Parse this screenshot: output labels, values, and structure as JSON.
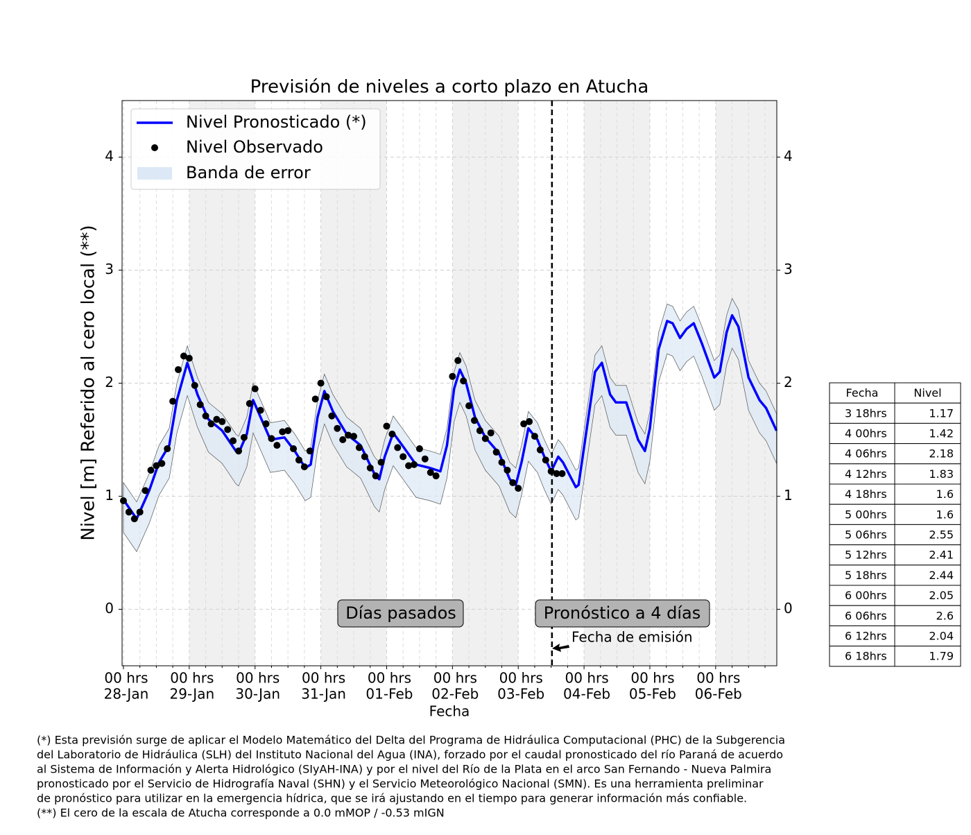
{
  "chart_data": {
    "type": "line",
    "title": "Previsión de niveles a corto plazo en Atucha",
    "xlabel": "Fecha",
    "ylabel": "Nivel [m] Referido al cero local (**)",
    "xlim": [
      -0.5,
      238.3
    ],
    "ylim": [
      -0.5,
      4.5
    ],
    "yticks": [
      0,
      1,
      2,
      3,
      4
    ],
    "xticks": [
      {
        "value": 0,
        "label": "00 hrs",
        "date": "28-Jan"
      },
      {
        "value": 24,
        "label": "00 hrs",
        "date": "29-Jan"
      },
      {
        "value": 48,
        "label": "00 hrs",
        "date": "30-Jan"
      },
      {
        "value": 72,
        "label": "00 hrs",
        "date": "31-Jan"
      },
      {
        "value": 96,
        "label": "00 hrs",
        "date": "01-Feb"
      },
      {
        "value": 120,
        "label": "00 hrs",
        "date": "02-Feb"
      },
      {
        "value": 144,
        "label": "00 hrs",
        "date": "03-Feb"
      },
      {
        "value": 168,
        "label": "00 hrs",
        "date": "04-Feb"
      },
      {
        "value": 192,
        "label": "00 hrs",
        "date": "05-Feb"
      },
      {
        "value": 216,
        "label": "00 hrs",
        "date": "06-Feb"
      }
    ],
    "xminorticks": [
      6,
      12,
      18,
      30,
      36,
      42,
      54,
      60,
      66,
      78,
      84,
      90,
      102,
      108,
      114,
      126,
      132,
      138,
      150,
      156,
      162,
      174,
      180,
      186,
      198,
      204,
      210,
      222,
      228,
      234
    ],
    "grid": true,
    "legend": "upper left",
    "emission": 156.3,
    "annotations": [
      {
        "text": "Días pasados"
      },
      {
        "text": "Pronóstico a 4 días"
      },
      {
        "text": "Fecha de emisión"
      }
    ],
    "series": [
      {
        "name": "Nivel Pronosticado (*)",
        "color": "#0000ff",
        "x": [
          0,
          4.8,
          9.4,
          13,
          16.7,
          19.5,
          23.3,
          27,
          31,
          36,
          41,
          42,
          45,
          47.3,
          50,
          53.6,
          58.7,
          62.5,
          66.3,
          68.3,
          70.8,
          73.3,
          76.4,
          81.4,
          86.5,
          91.5,
          93.3,
          95.3,
          98.4,
          101.7,
          106.7,
          111.8,
          115.6,
          118,
          120.6,
          122.7,
          125,
          128.2,
          132,
          137,
          140.9,
          143.1,
          145.2,
          147.7,
          151,
          153.5,
          156,
          158.6,
          160.3,
          165,
          166,
          168.7,
          172,
          174.5,
          177.5,
          179.6,
          183.4,
          187.7,
          190.2,
          192,
          195.2,
          198.3,
          200.3,
          203,
          205.4,
          208,
          211,
          215.5,
          217.5,
          220,
          222,
          224.3,
          228,
          232,
          234.4,
          238.2
        ],
        "values": [
          0.97,
          0.8,
          1.05,
          1.3,
          1.45,
          1.85,
          2.18,
          1.9,
          1.68,
          1.58,
          1.4,
          1.38,
          1.55,
          1.85,
          1.7,
          1.5,
          1.52,
          1.4,
          1.25,
          1.28,
          1.7,
          1.93,
          1.75,
          1.55,
          1.45,
          1.2,
          1.15,
          1.35,
          1.56,
          1.45,
          1.28,
          1.25,
          1.22,
          1.45,
          1.95,
          2.12,
          2.0,
          1.7,
          1.52,
          1.38,
          1.15,
          1.1,
          1.3,
          1.6,
          1.5,
          1.35,
          1.22,
          1.35,
          1.3,
          1.08,
          1.1,
          1.55,
          2.1,
          2.18,
          1.9,
          1.83,
          1.83,
          1.5,
          1.4,
          1.6,
          2.3,
          2.55,
          2.53,
          2.4,
          2.48,
          2.53,
          2.35,
          2.05,
          2.1,
          2.45,
          2.6,
          2.5,
          2.05,
          1.85,
          1.78,
          1.58
        ]
      },
      {
        "name": "Nivel Observado",
        "color": "#000000",
        "x": [
          0,
          2,
          4,
          6,
          8,
          10,
          12,
          14,
          16,
          18,
          20,
          22,
          24,
          26,
          28,
          30,
          32,
          34,
          36,
          38,
          40,
          42,
          44,
          46,
          48,
          50,
          52,
          54,
          56,
          58,
          60,
          62,
          64,
          66,
          68,
          70,
          72,
          74,
          76,
          78,
          80,
          82,
          84,
          86,
          88,
          90,
          92,
          94,
          96,
          98,
          100,
          102,
          104,
          106,
          108,
          110,
          112,
          114,
          120,
          122,
          124,
          126,
          128,
          130,
          132,
          134,
          136,
          138,
          140,
          142,
          144,
          146,
          148,
          150,
          152,
          154,
          156,
          158,
          160
        ],
        "values": [
          0.96,
          0.86,
          0.8,
          0.86,
          1.05,
          1.23,
          1.27,
          1.29,
          1.42,
          1.84,
          2.12,
          2.24,
          2.22,
          1.98,
          1.81,
          1.71,
          1.64,
          1.68,
          1.66,
          1.59,
          1.49,
          1.4,
          1.52,
          1.82,
          1.95,
          1.76,
          1.64,
          1.51,
          1.45,
          1.57,
          1.58,
          1.42,
          1.32,
          1.26,
          1.4,
          1.86,
          2.0,
          1.88,
          1.71,
          1.6,
          1.5,
          1.54,
          1.53,
          1.43,
          1.35,
          1.25,
          1.18,
          1.3,
          1.62,
          1.55,
          1.43,
          1.35,
          1.27,
          1.28,
          1.42,
          1.33,
          1.21,
          1.18,
          2.06,
          2.2,
          2.02,
          1.8,
          1.67,
          1.58,
          1.51,
          1.56,
          1.39,
          1.3,
          1.23,
          1.12,
          1.07,
          1.64,
          1.66,
          1.53,
          1.41,
          1.32,
          1.22,
          1.2,
          1.2
        ]
      },
      {
        "name": "Banda de error",
        "color": "#dce8f5",
        "upper": [
          1.12,
          0.95,
          1.2,
          1.45,
          1.6,
          2.0,
          2.33,
          2.05,
          1.83,
          1.73,
          1.55,
          1.53,
          1.7,
          2.0,
          1.85,
          1.65,
          1.67,
          1.55,
          1.4,
          1.43,
          1.85,
          2.08,
          1.9,
          1.7,
          1.6,
          1.35,
          1.3,
          1.5,
          1.71,
          1.6,
          1.43,
          1.4,
          1.37,
          1.6,
          2.1,
          2.27,
          2.15,
          1.85,
          1.67,
          1.53,
          1.3,
          1.25,
          1.45,
          1.75,
          1.65,
          1.5,
          1.37,
          1.5,
          1.45,
          1.23,
          1.25,
          1.7,
          2.25,
          2.33,
          2.05,
          1.98,
          1.98,
          1.65,
          1.55,
          1.75,
          2.45,
          2.7,
          2.68,
          2.55,
          2.63,
          2.68,
          2.5,
          2.2,
          2.25,
          2.6,
          2.75,
          2.65,
          2.2,
          2.0,
          1.93,
          1.73
        ],
        "lower": [
          0.68,
          0.51,
          0.76,
          1.01,
          1.16,
          1.56,
          1.89,
          1.61,
          1.39,
          1.29,
          1.11,
          1.09,
          1.26,
          1.56,
          1.41,
          1.21,
          1.23,
          1.11,
          0.96,
          0.99,
          1.41,
          1.64,
          1.46,
          1.26,
          1.16,
          0.91,
          0.86,
          1.06,
          1.27,
          1.16,
          0.99,
          0.96,
          0.93,
          1.16,
          1.66,
          1.83,
          1.71,
          1.41,
          1.23,
          1.09,
          0.86,
          0.81,
          1.01,
          1.31,
          1.21,
          1.06,
          0.93,
          1.06,
          1.01,
          0.79,
          0.81,
          1.26,
          1.81,
          1.89,
          1.61,
          1.54,
          1.54,
          1.21,
          1.11,
          1.31,
          2.01,
          2.26,
          2.24,
          2.11,
          2.19,
          2.24,
          2.06,
          1.76,
          1.81,
          2.16,
          2.31,
          2.21,
          1.76,
          1.56,
          1.49,
          1.29
        ]
      }
    ]
  },
  "table": {
    "columns": [
      "Fecha",
      "Nivel"
    ],
    "rows": [
      [
        "3 18hrs",
        "1.17"
      ],
      [
        "4 00hrs",
        "1.42"
      ],
      [
        "4 06hrs",
        "2.18"
      ],
      [
        "4 12hrs",
        "1.83"
      ],
      [
        "4 18hrs",
        "1.6"
      ],
      [
        "5 00hrs",
        "1.6"
      ],
      [
        "5 06hrs",
        "2.55"
      ],
      [
        "5 12hrs",
        "2.41"
      ],
      [
        "5 18hrs",
        "2.44"
      ],
      [
        "6 00hrs",
        "2.05"
      ],
      [
        "6 06hrs",
        "2.6"
      ],
      [
        "6 12hrs",
        "2.04"
      ],
      [
        "6 18hrs",
        "1.79"
      ]
    ]
  },
  "footnote": [
    "(*) Esta previsión surge de aplicar el Modelo Matemático del Delta del Programa de Hidráulica Computacional (PHC) de la Subgerencia",
    "del Laboratorio de Hidráulica (SLH) del Instituto Nacional del Agua (INA), forzado por el caudal pronosticado del río Paraná de acuerdo",
    "al Sistema de Información y Alerta Hidrológico (SIyAH-INA) y por el nivel del Río de la Plata en el arco San Fernando - Nueva Palmira",
    "pronosticado por el Servicio de Hidrografía Naval (SHN) y el Servicio Meteorológico Nacional (SMN). Es una herramienta preliminar",
    "de pronóstico para utilizar en la emergencia hídrica, que se irá ajustando en el tiempo para generar información más confiable.",
    "(**) El cero de la escala de Atucha corresponde a 0.0 mMOP / -0.53 mIGN"
  ]
}
